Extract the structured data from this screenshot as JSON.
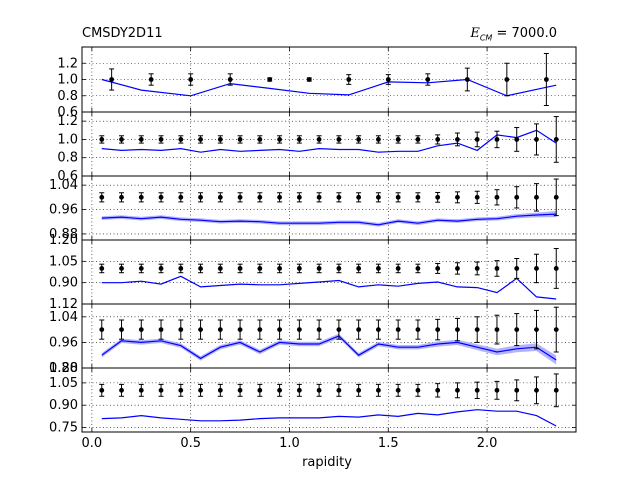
{
  "header": {
    "left_title": "CMSDY2D11",
    "energy_symbol": "E",
    "energy_subscript": "CM",
    "energy_value": "= 7000.0"
  },
  "colors": {
    "data": "#000000",
    "mc": "#0000ff",
    "band": "#b3b3ff",
    "grid": "#000000"
  },
  "chart_data": {
    "type": "line",
    "title": "CMSDY2D11",
    "xlabel": "rapidity",
    "xlim": [
      -0.05,
      2.45
    ],
    "xticks": [
      0.0,
      0.5,
      1.0,
      1.5,
      2.0
    ],
    "xtick_labels": [
      "0.0",
      "0.5",
      "1.0",
      "1.5",
      "2.0"
    ],
    "grid": true,
    "panels": [
      {
        "name": "panel-1",
        "ylim": [
          0.6,
          1.4
        ],
        "yticks": [
          0.6,
          0.8,
          1.0,
          1.2
        ],
        "ytick_labels": [
          "0.6",
          "0.8",
          "1.0",
          "1.2"
        ],
        "data": {
          "x": [
            0.1,
            0.3,
            0.5,
            0.7,
            0.9,
            1.1,
            1.3,
            1.5,
            1.7,
            1.9,
            2.1,
            2.3
          ],
          "y": [
            1.0,
            1.0,
            1.0,
            1.0,
            1.0,
            1.0,
            1.0,
            1.0,
            1.0,
            1.0,
            1.0,
            1.0
          ],
          "err": [
            0.13,
            0.07,
            0.07,
            0.07,
            0.02,
            0.02,
            0.06,
            0.06,
            0.07,
            0.14,
            0.2,
            0.32
          ]
        },
        "mc": {
          "x": [
            0.05,
            0.25,
            0.5,
            0.7,
            0.9,
            1.1,
            1.3,
            1.5,
            1.7,
            1.9,
            2.1,
            2.35
          ],
          "y": [
            1.0,
            0.87,
            0.8,
            0.95,
            0.89,
            0.83,
            0.81,
            0.97,
            0.96,
            1.0,
            0.8,
            0.93
          ]
        }
      },
      {
        "name": "panel-2",
        "ylim": [
          0.6,
          1.3
        ],
        "yticks": [
          0.6,
          0.8,
          1.0,
          1.2
        ],
        "ytick_labels": [
          "0.6",
          "0.8",
          "1.0",
          "1.2"
        ],
        "data": {
          "x": [
            0.05,
            0.15,
            0.25,
            0.35,
            0.45,
            0.55,
            0.65,
            0.75,
            0.85,
            0.95,
            1.05,
            1.15,
            1.25,
            1.35,
            1.45,
            1.55,
            1.65,
            1.75,
            1.85,
            1.95,
            2.05,
            2.15,
            2.25,
            2.35
          ],
          "y": [
            1.0,
            1.0,
            1.0,
            1.0,
            1.0,
            1.0,
            1.0,
            1.0,
            1.0,
            1.0,
            1.0,
            1.0,
            1.0,
            1.0,
            1.0,
            1.0,
            1.0,
            1.0,
            1.0,
            1.0,
            1.0,
            1.0,
            1.0,
            1.0
          ],
          "err": [
            0.04,
            0.04,
            0.04,
            0.04,
            0.04,
            0.04,
            0.04,
            0.04,
            0.04,
            0.04,
            0.04,
            0.04,
            0.04,
            0.04,
            0.04,
            0.04,
            0.04,
            0.05,
            0.07,
            0.08,
            0.09,
            0.13,
            0.17,
            0.25
          ]
        },
        "mc": {
          "x": [
            0.05,
            0.15,
            0.25,
            0.35,
            0.45,
            0.55,
            0.65,
            0.75,
            0.85,
            0.95,
            1.05,
            1.15,
            1.25,
            1.35,
            1.45,
            1.55,
            1.65,
            1.75,
            1.85,
            1.95,
            2.05,
            2.15,
            2.25,
            2.35
          ],
          "y": [
            0.9,
            0.88,
            0.89,
            0.88,
            0.9,
            0.86,
            0.89,
            0.87,
            0.88,
            0.89,
            0.87,
            0.9,
            0.89,
            0.89,
            0.86,
            0.87,
            0.87,
            0.93,
            0.96,
            0.88,
            1.05,
            1.02,
            1.1,
            0.96
          ]
        }
      },
      {
        "name": "panel-3",
        "ylim": [
          0.86,
          1.07
        ],
        "yticks": [
          0.88,
          0.96,
          1.04
        ],
        "ytick_labels": [
          "0.88",
          "0.96",
          "1.04"
        ],
        "data": {
          "x": [
            0.05,
            0.15,
            0.25,
            0.35,
            0.45,
            0.55,
            0.65,
            0.75,
            0.85,
            0.95,
            1.05,
            1.15,
            1.25,
            1.35,
            1.45,
            1.55,
            1.65,
            1.75,
            1.85,
            1.95,
            2.05,
            2.15,
            2.25,
            2.35
          ],
          "y": [
            1.0,
            1.0,
            1.0,
            1.0,
            1.0,
            1.0,
            1.0,
            1.0,
            1.0,
            1.0,
            1.0,
            1.0,
            1.0,
            1.0,
            1.0,
            1.0,
            1.0,
            1.0,
            1.0,
            1.0,
            1.0,
            1.0,
            1.0,
            1.0
          ],
          "err": [
            0.015,
            0.015,
            0.015,
            0.015,
            0.015,
            0.015,
            0.015,
            0.015,
            0.015,
            0.015,
            0.015,
            0.015,
            0.015,
            0.015,
            0.015,
            0.015,
            0.015,
            0.016,
            0.018,
            0.02,
            0.025,
            0.035,
            0.045,
            0.06
          ]
        },
        "mc": {
          "x": [
            0.05,
            0.15,
            0.25,
            0.35,
            0.45,
            0.55,
            0.65,
            0.75,
            0.85,
            0.95,
            1.05,
            1.15,
            1.25,
            1.35,
            1.45,
            1.55,
            1.65,
            1.75,
            1.85,
            1.95,
            2.05,
            2.15,
            2.25,
            2.35
          ],
          "y": [
            0.932,
            0.935,
            0.93,
            0.935,
            0.928,
            0.925,
            0.92,
            0.922,
            0.92,
            0.915,
            0.915,
            0.915,
            0.918,
            0.918,
            0.91,
            0.922,
            0.915,
            0.925,
            0.922,
            0.928,
            0.93,
            0.938,
            0.942,
            0.945
          ],
          "band": [
            0.006,
            0.006,
            0.006,
            0.006,
            0.006,
            0.006,
            0.006,
            0.006,
            0.006,
            0.006,
            0.006,
            0.006,
            0.006,
            0.006,
            0.006,
            0.006,
            0.006,
            0.006,
            0.006,
            0.006,
            0.006,
            0.007,
            0.008,
            0.01
          ]
        }
      },
      {
        "name": "panel-4",
        "ylim": [
          0.75,
          1.2
        ],
        "yticks": [
          0.75,
          0.9,
          1.05,
          1.2
        ],
        "ytick_labels": [
          "",
          "0.90",
          "1.05",
          "1.20"
        ],
        "data": {
          "x": [
            0.05,
            0.15,
            0.25,
            0.35,
            0.45,
            0.55,
            0.65,
            0.75,
            0.85,
            0.95,
            1.05,
            1.15,
            1.25,
            1.35,
            1.45,
            1.55,
            1.65,
            1.75,
            1.85,
            1.95,
            2.05,
            2.15,
            2.25,
            2.35
          ],
          "y": [
            1.0,
            1.0,
            1.0,
            1.0,
            1.0,
            1.0,
            1.0,
            1.0,
            1.0,
            1.0,
            1.0,
            1.0,
            1.0,
            1.0,
            1.0,
            1.0,
            1.0,
            1.0,
            1.0,
            1.0,
            1.0,
            1.0,
            1.0,
            1.0
          ],
          "err": [
            0.03,
            0.03,
            0.03,
            0.03,
            0.03,
            0.03,
            0.03,
            0.03,
            0.03,
            0.03,
            0.03,
            0.03,
            0.03,
            0.03,
            0.03,
            0.03,
            0.03,
            0.035,
            0.04,
            0.045,
            0.055,
            0.07,
            0.1,
            0.14
          ]
        },
        "mc": {
          "x": [
            0.05,
            0.15,
            0.25,
            0.35,
            0.45,
            0.55,
            0.65,
            0.75,
            0.85,
            0.95,
            1.05,
            1.15,
            1.25,
            1.35,
            1.45,
            1.55,
            1.65,
            1.75,
            1.85,
            1.95,
            2.05,
            2.15,
            2.25,
            2.35
          ],
          "y": [
            0.9,
            0.9,
            0.91,
            0.89,
            0.945,
            0.87,
            0.88,
            0.89,
            0.885,
            0.885,
            0.895,
            0.905,
            0.915,
            0.87,
            0.885,
            0.875,
            0.895,
            0.905,
            0.87,
            0.865,
            0.83,
            0.93,
            0.8,
            0.785
          ]
        }
      },
      {
        "name": "panel-5",
        "ylim": [
          0.88,
          1.08
        ],
        "yticks": [
          0.88,
          0.96,
          1.04
        ],
        "ytick_labels": [
          "0.88",
          "0.96",
          "1.04"
        ],
        "extra_tick_label": "1.12",
        "data": {
          "x": [
            0.05,
            0.15,
            0.25,
            0.35,
            0.45,
            0.55,
            0.65,
            0.75,
            0.85,
            0.95,
            1.05,
            1.15,
            1.25,
            1.35,
            1.45,
            1.55,
            1.65,
            1.75,
            1.85,
            1.95,
            2.05,
            2.15,
            2.25,
            2.35
          ],
          "y": [
            1.0,
            1.0,
            1.0,
            1.0,
            1.0,
            1.0,
            1.0,
            1.0,
            1.0,
            1.0,
            1.0,
            1.0,
            1.0,
            1.0,
            1.0,
            1.0,
            1.0,
            1.0,
            1.0,
            1.0,
            1.0,
            1.0,
            1.0,
            1.0
          ],
          "err": [
            0.03,
            0.03,
            0.03,
            0.03,
            0.03,
            0.03,
            0.03,
            0.03,
            0.03,
            0.03,
            0.03,
            0.03,
            0.03,
            0.03,
            0.03,
            0.03,
            0.03,
            0.032,
            0.035,
            0.04,
            0.045,
            0.05,
            0.06,
            0.07
          ]
        },
        "mc": {
          "x": [
            0.05,
            0.15,
            0.25,
            0.35,
            0.45,
            0.55,
            0.65,
            0.75,
            0.85,
            0.95,
            1.05,
            1.15,
            1.25,
            1.35,
            1.45,
            1.55,
            1.65,
            1.75,
            1.85,
            1.95,
            2.05,
            2.15,
            2.25,
            2.35
          ],
          "y": [
            0.92,
            0.965,
            0.96,
            0.965,
            0.95,
            0.91,
            0.945,
            0.96,
            0.93,
            0.96,
            0.955,
            0.955,
            0.98,
            0.92,
            0.955,
            0.945,
            0.945,
            0.955,
            0.96,
            0.945,
            0.93,
            0.94,
            0.945,
            0.905
          ],
          "band": [
            0.007,
            0.007,
            0.007,
            0.007,
            0.007,
            0.007,
            0.007,
            0.007,
            0.007,
            0.007,
            0.007,
            0.007,
            0.007,
            0.007,
            0.007,
            0.007,
            0.007,
            0.008,
            0.008,
            0.009,
            0.01,
            0.011,
            0.012,
            0.014
          ]
        }
      },
      {
        "name": "panel-6",
        "ylim": [
          0.72,
          1.15
        ],
        "yticks": [
          0.75,
          0.9,
          1.05
        ],
        "ytick_labels": [
          "0.75",
          "0.90",
          "1.05"
        ],
        "extra_tick_label": "1.20",
        "data": {
          "x": [
            0.05,
            0.15,
            0.25,
            0.35,
            0.45,
            0.55,
            0.65,
            0.75,
            0.85,
            0.95,
            1.05,
            1.15,
            1.25,
            1.35,
            1.45,
            1.55,
            1.65,
            1.75,
            1.85,
            1.95,
            2.05,
            2.15,
            2.25,
            2.35
          ],
          "y": [
            1.0,
            1.0,
            1.0,
            1.0,
            1.0,
            1.0,
            1.0,
            1.0,
            1.0,
            1.0,
            1.0,
            1.0,
            1.0,
            1.0,
            1.0,
            1.0,
            1.0,
            1.0,
            1.0,
            1.0,
            1.0,
            1.0,
            1.0,
            1.0
          ],
          "err": [
            0.04,
            0.04,
            0.04,
            0.04,
            0.04,
            0.04,
            0.04,
            0.04,
            0.04,
            0.04,
            0.04,
            0.04,
            0.04,
            0.04,
            0.04,
            0.04,
            0.04,
            0.045,
            0.05,
            0.055,
            0.06,
            0.07,
            0.09,
            0.11
          ]
        },
        "mc": {
          "x": [
            0.05,
            0.15,
            0.25,
            0.35,
            0.45,
            0.55,
            0.65,
            0.75,
            0.85,
            0.95,
            1.05,
            1.15,
            1.25,
            1.35,
            1.45,
            1.55,
            1.65,
            1.75,
            1.85,
            1.95,
            2.05,
            2.15,
            2.25,
            2.35
          ],
          "y": [
            0.81,
            0.815,
            0.83,
            0.815,
            0.805,
            0.795,
            0.795,
            0.8,
            0.81,
            0.815,
            0.815,
            0.815,
            0.825,
            0.82,
            0.835,
            0.825,
            0.845,
            0.835,
            0.855,
            0.87,
            0.86,
            0.86,
            0.83,
            0.76
          ]
        }
      }
    ]
  }
}
